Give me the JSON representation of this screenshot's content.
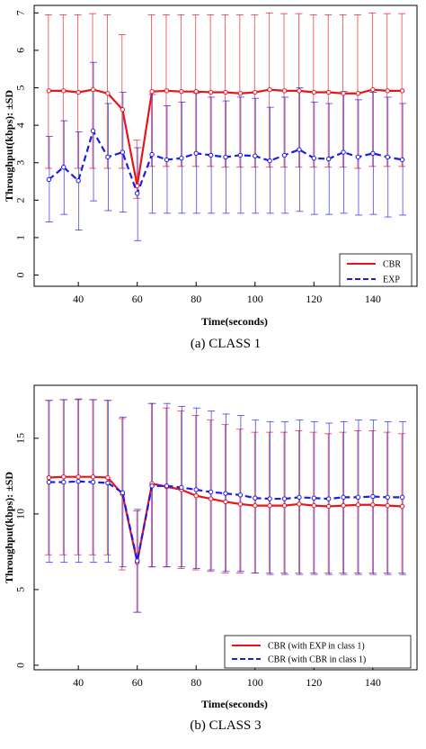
{
  "chart_data": [
    {
      "type": "line",
      "caption": "(a) CLASS 1",
      "xlabel": "Time(seconds)",
      "ylabel": "Throughput(kbps): ±SD",
      "xlim": [
        25,
        155
      ],
      "ylim": [
        -0.3,
        7.2
      ],
      "xticks": [
        40,
        60,
        80,
        100,
        120,
        140
      ],
      "yticks": [
        0,
        1,
        2,
        3,
        4,
        5,
        6,
        7
      ],
      "legend_position": "bottom-right",
      "x": [
        30,
        35,
        40,
        45,
        50,
        55,
        60,
        65,
        70,
        75,
        80,
        85,
        90,
        95,
        100,
        105,
        110,
        115,
        120,
        125,
        130,
        135,
        140,
        145,
        150
      ],
      "series": [
        {
          "name": "CBR",
          "color": "#e8141c",
          "dash": "solid",
          "values": [
            4.92,
            4.92,
            4.88,
            4.95,
            4.85,
            4.42,
            2.38,
            4.9,
            4.92,
            4.9,
            4.9,
            4.88,
            4.88,
            4.85,
            4.88,
            4.95,
            4.92,
            4.92,
            4.88,
            4.88,
            4.85,
            4.85,
            4.95,
            4.92,
            4.92
          ],
          "error_low": [
            2.85,
            2.85,
            2.85,
            2.85,
            2.85,
            2.85,
            2.05,
            2.9,
            2.9,
            2.9,
            2.9,
            2.9,
            2.88,
            2.88,
            2.88,
            2.88,
            2.88,
            2.88,
            2.88,
            2.88,
            2.88,
            2.85,
            2.9,
            2.9,
            2.9
          ],
          "error_high": [
            6.95,
            6.95,
            6.95,
            6.98,
            6.95,
            6.42,
            3.6,
            6.95,
            6.95,
            6.95,
            6.95,
            6.95,
            6.95,
            6.95,
            6.95,
            7.0,
            6.98,
            6.98,
            6.95,
            6.95,
            6.95,
            6.95,
            7.0,
            6.98,
            6.98
          ]
        },
        {
          "name": "EXP",
          "color": "#1c1ce6",
          "dash": "dashed",
          "values": [
            2.55,
            2.88,
            2.52,
            3.85,
            3.15,
            3.28,
            2.18,
            3.22,
            3.08,
            3.12,
            3.25,
            3.2,
            3.15,
            3.2,
            3.18,
            3.05,
            3.2,
            3.35,
            3.12,
            3.1,
            3.28,
            3.15,
            3.25,
            3.15,
            3.08
          ],
          "error_low": [
            1.42,
            1.62,
            1.2,
            1.98,
            1.72,
            1.68,
            0.92,
            1.65,
            1.65,
            1.65,
            1.65,
            1.65,
            1.65,
            1.65,
            1.65,
            1.65,
            1.65,
            1.7,
            1.62,
            1.62,
            1.65,
            1.6,
            1.62,
            1.55,
            1.6
          ],
          "error_high": [
            3.7,
            4.12,
            3.82,
            5.68,
            4.58,
            4.88,
            3.4,
            4.82,
            4.52,
            4.62,
            4.85,
            4.75,
            4.65,
            4.75,
            4.72,
            4.48,
            4.75,
            5.0,
            4.62,
            4.58,
            4.9,
            4.68,
            4.88,
            4.75,
            4.58
          ]
        }
      ]
    },
    {
      "type": "line",
      "caption": "(b) CLASS 3",
      "xlabel": "Time(seconds)",
      "ylabel": "Throughput(kbps): ±SD",
      "xlim": [
        25,
        155
      ],
      "ylim": [
        -0.3,
        18.5
      ],
      "xticks": [
        40,
        60,
        80,
        100,
        120,
        140
      ],
      "yticks": [
        0,
        5,
        10,
        15
      ],
      "legend_position": "bottom-right",
      "x": [
        30,
        35,
        40,
        45,
        50,
        55,
        60,
        65,
        70,
        75,
        80,
        85,
        90,
        95,
        100,
        105,
        110,
        115,
        120,
        125,
        130,
        135,
        140,
        145,
        150
      ],
      "series": [
        {
          "name": "CBR (with EXP in class 1)",
          "color": "#e8141c",
          "dash": "solid",
          "values": [
            12.4,
            12.45,
            12.45,
            12.45,
            12.4,
            11.3,
            6.8,
            12.0,
            11.8,
            11.6,
            11.2,
            11.0,
            10.8,
            10.65,
            10.55,
            10.55,
            10.55,
            10.65,
            10.55,
            10.5,
            10.55,
            10.6,
            10.6,
            10.55,
            10.5
          ],
          "error_low": [
            7.3,
            7.3,
            7.3,
            7.3,
            7.3,
            6.3,
            3.5,
            6.5,
            6.5,
            6.4,
            6.3,
            6.2,
            6.1,
            6.1,
            6.1,
            6.1,
            6.1,
            6.1,
            6.1,
            6.1,
            6.1,
            6.1,
            6.1,
            6.1,
            6.1
          ],
          "error_high": [
            17.5,
            17.55,
            17.55,
            17.55,
            17.5,
            16.3,
            10.2,
            17.3,
            17.0,
            16.8,
            16.5,
            16.2,
            15.9,
            15.6,
            15.4,
            15.4,
            15.4,
            15.5,
            15.4,
            15.3,
            15.4,
            15.5,
            15.5,
            15.4,
            15.3
          ]
        },
        {
          "name": "CBR (with CBR in class 1)",
          "color": "#1c1ce6",
          "dash": "dashed",
          "values": [
            12.1,
            12.1,
            12.15,
            12.1,
            12.05,
            11.4,
            6.9,
            11.85,
            11.85,
            11.75,
            11.6,
            11.45,
            11.35,
            11.25,
            11.05,
            11.0,
            11.0,
            11.1,
            11.05,
            11.0,
            11.1,
            11.1,
            11.15,
            11.1,
            11.1
          ],
          "error_low": [
            6.8,
            6.8,
            6.8,
            6.8,
            6.8,
            6.5,
            3.5,
            6.5,
            6.5,
            6.5,
            6.4,
            6.3,
            6.2,
            6.2,
            6.1,
            6.0,
            6.0,
            6.0,
            6.0,
            6.0,
            6.0,
            6.0,
            6.0,
            6.0,
            6.0
          ],
          "error_high": [
            17.5,
            17.55,
            17.6,
            17.55,
            17.5,
            16.4,
            10.3,
            17.3,
            17.3,
            17.1,
            17.0,
            16.8,
            16.6,
            16.5,
            16.2,
            16.1,
            16.1,
            16.2,
            16.1,
            16.0,
            16.1,
            16.2,
            16.2,
            16.1,
            16.1
          ]
        }
      ]
    }
  ]
}
